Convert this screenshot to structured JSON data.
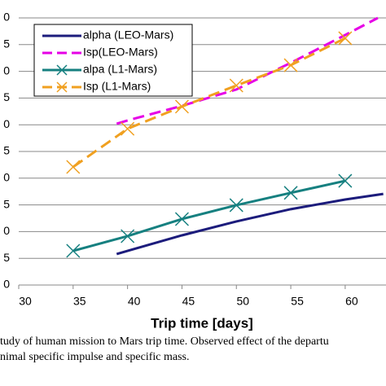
{
  "chart_data": {
    "type": "line",
    "x_label": "Trip time [days]",
    "caption": [
      "tudy of human mission to Mars trip time.  Observed effect of the departu",
      "nimal specific impulse and specific mass."
    ],
    "xlim": [
      30,
      63.75
    ],
    "xticks": [
      30,
      35,
      40,
      45,
      50,
      55,
      60
    ],
    "ylim": [
      0,
      10
    ],
    "yticks": [
      {
        "value": 0,
        "label": "0"
      },
      {
        "value": 1,
        "label": "5"
      },
      {
        "value": 2,
        "label": "0"
      },
      {
        "value": 3,
        "label": "5"
      },
      {
        "value": 4,
        "label": "0"
      },
      {
        "value": 5,
        "label": "5"
      },
      {
        "value": 6,
        "label": "0"
      },
      {
        "value": 7,
        "label": "5"
      },
      {
        "value": 8,
        "label": "0"
      },
      {
        "value": 9,
        "label": "5"
      },
      {
        "value": 10,
        "label": "0"
      }
    ],
    "grid": true,
    "series": [
      {
        "name": "alpha (LEO-Mars)",
        "color": "#1c1c7c",
        "dash": false,
        "marker": false,
        "x": [
          39,
          40,
          45,
          50,
          55,
          60,
          63.5
        ],
        "values": [
          1.16,
          1.28,
          1.86,
          2.38,
          2.84,
          3.2,
          3.41
        ]
      },
      {
        "name": "Isp(LEO-Mars)",
        "color": "#e600e6",
        "dash": true,
        "marker": false,
        "x": [
          39,
          40,
          45,
          50,
          55,
          60,
          63
        ],
        "values": [
          6.04,
          6.16,
          6.71,
          7.32,
          8.32,
          9.36,
          10
        ]
      },
      {
        "name": "alpa (L1-Mars)",
        "color": "#168080",
        "dash": false,
        "marker": true,
        "x": [
          35,
          40,
          45,
          50,
          55,
          60
        ],
        "values": [
          1.28,
          1.83,
          2.47,
          2.99,
          3.45,
          3.9
        ]
      },
      {
        "name": "Isp (L1-Mars)",
        "color": "#f0a020",
        "dash": true,
        "marker": true,
        "x": [
          35,
          40,
          45,
          50,
          55,
          60
        ],
        "values": [
          4.42,
          5.85,
          6.68,
          7.47,
          8.23,
          9.24
        ]
      }
    ]
  }
}
